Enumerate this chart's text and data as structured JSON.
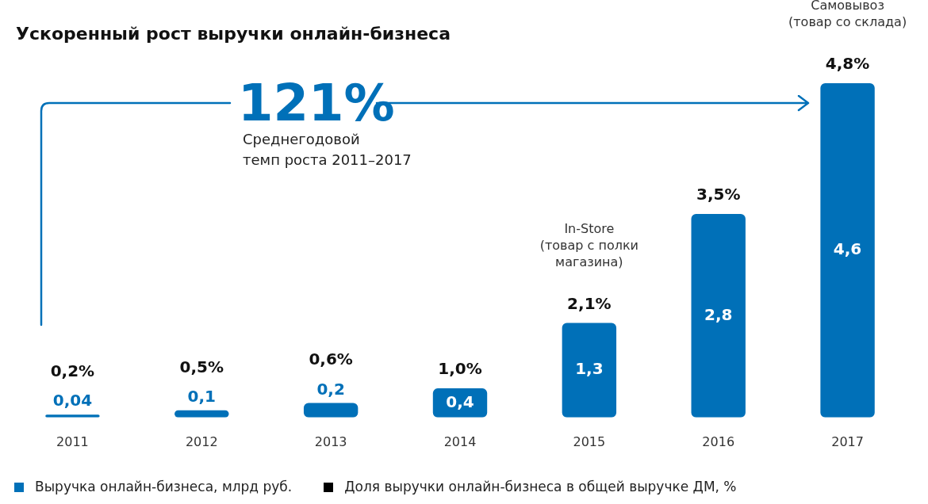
{
  "chart_data": {
    "type": "bar",
    "title": "Ускоренный рост выручки онлайн-бизнеса",
    "categories": [
      "2011",
      "2012",
      "2013",
      "2014",
      "2015",
      "2016",
      "2017"
    ],
    "series": [
      {
        "name": "Выручка онлайн-бизнеса, млрд руб.",
        "color": "#0070b8",
        "values": [
          0.04,
          0.1,
          0.2,
          0.4,
          1.3,
          2.8,
          4.6
        ],
        "value_labels": [
          "0,04",
          "0,1",
          "0,2",
          "0,4",
          "1,3",
          "2,8",
          "4,6"
        ]
      }
    ],
    "tick_labels": "x",
    "grid": false,
    "legend": "bottom",
    "annotations": [
      "121%",
      "Среднегодовой\nтемп роста 2011–2017",
      "In-Store\n(товар с полки\nмагазина)",
      "Самовывоз\n(товар со склада)",
      "Доля выручки онлайн-бизнеса в общей выручке ДМ, %",
      {
        "text": "0,2%",
        "x": "2011",
        "y": 0.04
      },
      {
        "text": "0,5%",
        "x": "2012",
        "y": 0.1
      },
      {
        "text": "0,6%",
        "x": "2013",
        "y": 0.2
      },
      {
        "text": "1,0%",
        "x": "2014",
        "y": 0.4
      },
      {
        "text": "2,1%",
        "x": "2015",
        "y": 1.3
      },
      {
        "text": "3,5%",
        "x": "2016",
        "y": 2.8
      },
      {
        "text": "4,8%",
        "x": "2017",
        "y": 4.6
      }
    ]
  }
}
